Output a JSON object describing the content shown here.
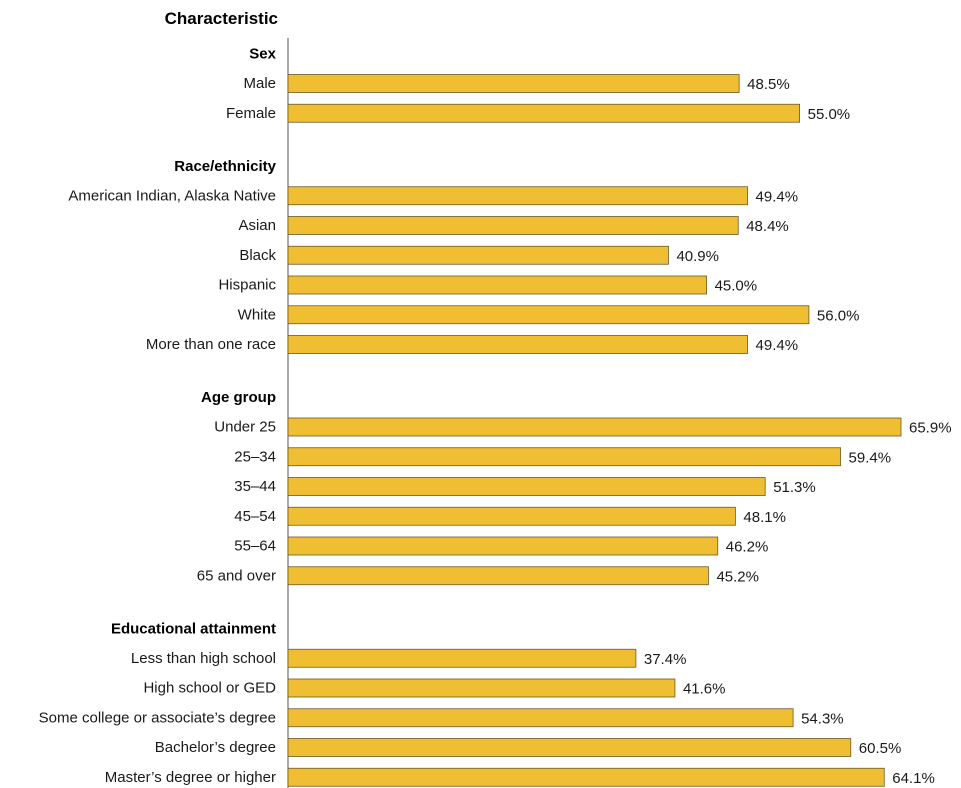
{
  "colors": {
    "bar_fill": "#F0BE32",
    "bar_stroke": "#6b5a2a",
    "axis": "#555555"
  },
  "chart_data": {
    "type": "bar",
    "orientation": "horizontal",
    "title": "Characteristic",
    "value_format": "percent_one_decimal",
    "xlim": [
      0,
      65.9
    ],
    "grid": false,
    "groups": [
      {
        "name": "Sex",
        "categories": [
          "Male",
          "Female"
        ],
        "values": [
          48.5,
          55.0
        ]
      },
      {
        "name": "Race/ethnicity",
        "categories": [
          "American Indian, Alaska Native",
          "Asian",
          "Black",
          "Hispanic",
          "White",
          "More than one race"
        ],
        "values": [
          49.4,
          48.4,
          40.9,
          45.0,
          56.0,
          49.4
        ]
      },
      {
        "name": "Age group",
        "categories": [
          "Under 25",
          "25–34",
          "35–44",
          "45–54",
          "55–64",
          "65 and over"
        ],
        "values": [
          65.9,
          59.4,
          51.3,
          48.1,
          46.2,
          45.2
        ]
      },
      {
        "name": "Educational attainment",
        "categories": [
          "Less than high school",
          "High school or GED",
          "Some college or associate’s degree",
          "Bachelor’s degree",
          "Master’s degree or higher"
        ],
        "values": [
          37.4,
          41.6,
          54.3,
          60.5,
          64.1
        ]
      }
    ]
  }
}
